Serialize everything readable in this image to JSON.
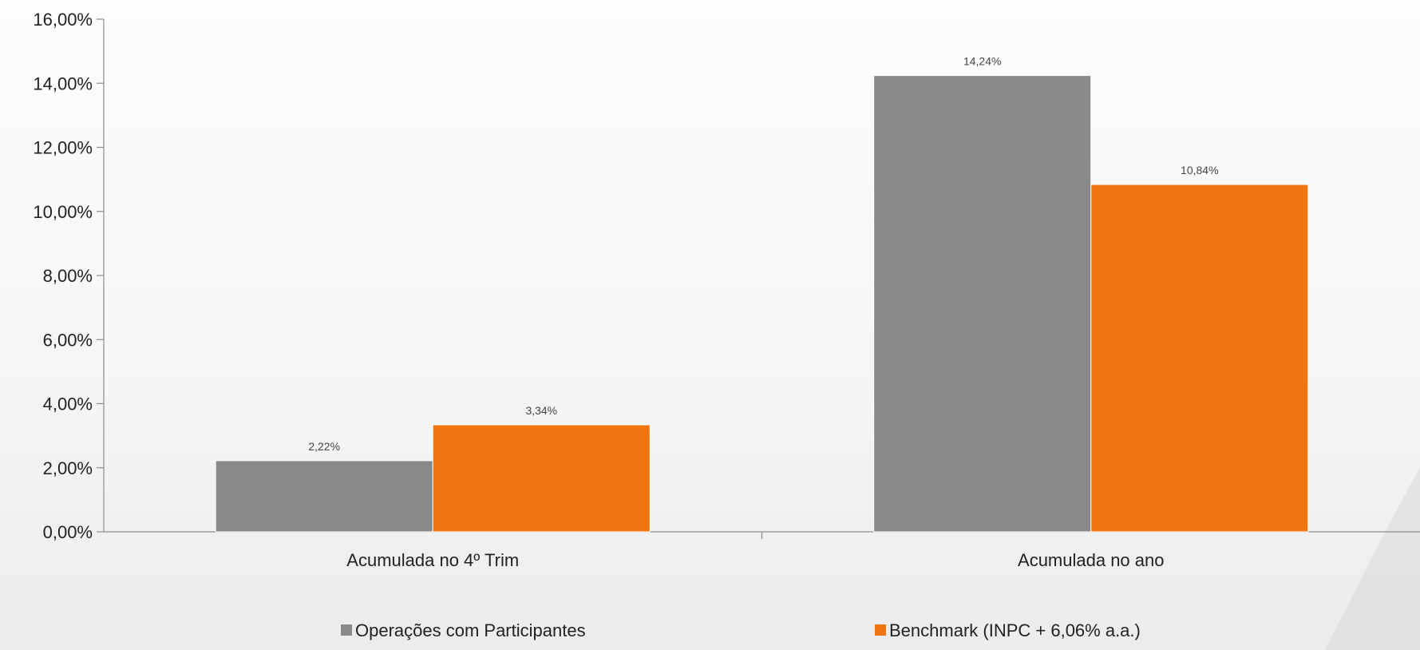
{
  "chart_data": {
    "type": "bar",
    "categories": [
      "Acumulada no 4º Trim",
      "Acumulada no ano"
    ],
    "series": [
      {
        "name": "Operações com Participantes",
        "values": [
          2.22,
          14.24
        ],
        "labels": [
          "2,22%",
          "14,24%"
        ],
        "color": "#898989"
      },
      {
        "name": "Benchmark (INPC + 6,06% a.a.)",
        "values": [
          3.34,
          10.84
        ],
        "labels": [
          "3,34%",
          "10,84%"
        ],
        "color": "#f07511"
      }
    ],
    "ylim": [
      0,
      16
    ],
    "yticks": [
      0,
      2,
      4,
      6,
      8,
      10,
      12,
      14,
      16
    ],
    "ytick_labels": [
      "0,00%",
      "2,00%",
      "4,00%",
      "6,00%",
      "8,00%",
      "10,00%",
      "12,00%",
      "14,00%",
      "16,00%"
    ],
    "title": "",
    "xlabel": "",
    "ylabel": "",
    "grid": false,
    "legend_position": "bottom",
    "axis_color": "#8c8c8c"
  }
}
